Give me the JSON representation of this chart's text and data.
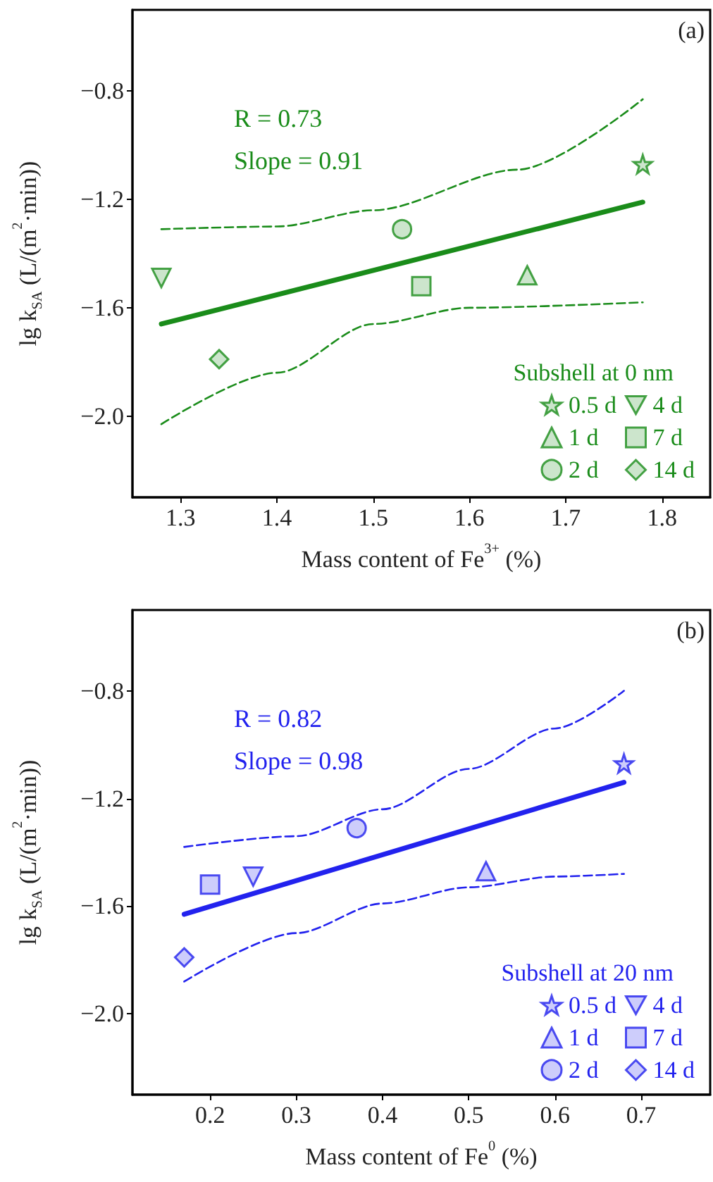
{
  "chart_data": [
    {
      "type": "scatter",
      "xlabel": "Mass content of Fe$^{3+}$ (%)",
      "ylabel": "lg k$_{SA}$ (L/(m$^{2}$·min))",
      "legend_title": "Subshell at 0 nm",
      "annotations": [
        "(a)",
        "R = 0.73",
        "Slope = 0.91"
      ],
      "xlim": [
        1.25,
        1.85
      ],
      "xticks": [
        1.3,
        1.4,
        1.5,
        1.6,
        1.7,
        1.8
      ],
      "ylim": [
        -2.3,
        -0.5
      ],
      "yticks": [
        {
          "value": -0.8,
          "label": "−0.8"
        },
        {
          "value": -1.2,
          "label": "−1.2"
        },
        {
          "value": -1.6,
          "label": "−1.6"
        },
        {
          "value": -2.0,
          "label": "−2.0"
        }
      ],
      "grid": false,
      "legend": "bottom right",
      "series": [
        {
          "name": "0.5 d",
          "marker": "star",
          "color": "#1a8c1a",
          "x": [
            1.78
          ],
          "values": [
            -1.07
          ]
        },
        {
          "name": "1 d",
          "marker": "triangle",
          "color": "#1a8c1a",
          "x": [
            1.66
          ],
          "values": [
            -1.48
          ]
        },
        {
          "name": "2 d",
          "marker": "circle",
          "color": "#1a8c1a",
          "x": [
            1.53
          ],
          "values": [
            -1.31
          ]
        },
        {
          "name": "4 d",
          "marker": "triangle-down",
          "color": "#1a8c1a",
          "x": [
            1.28
          ],
          "values": [
            -1.49
          ]
        },
        {
          "name": "7 d",
          "marker": "square",
          "color": "#1a8c1a",
          "x": [
            1.55
          ],
          "values": [
            -1.52
          ]
        },
        {
          "name": "14 d",
          "marker": "diamond",
          "color": "#1a8c1a",
          "x": [
            1.34
          ],
          "values": [
            -1.79
          ]
        },
        {
          "type": "line",
          "line_style": "solid",
          "color": "#1a8c1a",
          "x": [
            1.28,
            1.78
          ],
          "values": [
            -1.66,
            -1.21
          ]
        },
        {
          "type": "line",
          "line_style": "dashed",
          "color": "#1a8c1a",
          "x": [
            1.28,
            1.4,
            1.5,
            1.65,
            1.78
          ],
          "values": [
            -1.31,
            -1.3,
            -1.24,
            -1.09,
            -0.83
          ]
        },
        {
          "type": "line",
          "line_style": "dashed",
          "color": "#1a8c1a",
          "x": [
            1.28,
            1.4,
            1.5,
            1.6,
            1.78
          ],
          "values": [
            -2.03,
            -1.84,
            -1.66,
            -1.6,
            -1.58
          ]
        }
      ]
    },
    {
      "type": "scatter",
      "xlabel": "Mass content of Fe$^{0}$ (%)",
      "ylabel": "lg k$_{SA}$ (L/(m$^{2}$·min))",
      "legend_title": "Subshell at 20 nm",
      "annotations": [
        "(b)",
        "R = 0.82",
        "Slope = 0.98"
      ],
      "xlim": [
        0.11,
        0.78
      ],
      "xticks": [
        0.2,
        0.3,
        0.4,
        0.5,
        0.6,
        0.7
      ],
      "ylim": [
        -2.3,
        -0.5
      ],
      "yticks": [
        {
          "value": -0.8,
          "label": "−0.8"
        },
        {
          "value": -1.2,
          "label": "−1.2"
        },
        {
          "value": -1.6,
          "label": "−1.6"
        },
        {
          "value": -2.0,
          "label": "−2.0"
        }
      ],
      "grid": false,
      "legend": "bottom right",
      "series": [
        {
          "name": "0.5 d",
          "marker": "star",
          "color": "#2222ee",
          "x": [
            0.68
          ],
          "values": [
            -1.07
          ]
        },
        {
          "name": "1 d",
          "marker": "triangle",
          "color": "#2222ee",
          "x": [
            0.52
          ],
          "values": [
            -1.47
          ]
        },
        {
          "name": "2 d",
          "marker": "circle",
          "color": "#2222ee",
          "x": [
            0.37
          ],
          "values": [
            -1.31
          ]
        },
        {
          "name": "4 d",
          "marker": "triangle-down",
          "color": "#2222ee",
          "x": [
            0.25
          ],
          "values": [
            -1.49
          ]
        },
        {
          "name": "7 d",
          "marker": "square",
          "color": "#2222ee",
          "x": [
            0.2
          ],
          "values": [
            -1.52
          ]
        },
        {
          "name": "14 d",
          "marker": "diamond",
          "color": "#2222ee",
          "x": [
            0.17
          ],
          "values": [
            -1.79
          ]
        },
        {
          "type": "line",
          "line_style": "solid",
          "color": "#2222ee",
          "x": [
            0.17,
            0.68
          ],
          "values": [
            -1.63,
            -1.14
          ]
        },
        {
          "type": "line",
          "line_style": "dashed",
          "color": "#2222ee",
          "x": [
            0.17,
            0.3,
            0.4,
            0.5,
            0.6,
            0.68
          ],
          "values": [
            -1.38,
            -1.34,
            -1.24,
            -1.09,
            -0.94,
            -0.8
          ]
        },
        {
          "type": "line",
          "line_style": "dashed",
          "color": "#2222ee",
          "x": [
            0.17,
            0.3,
            0.4,
            0.5,
            0.6,
            0.68
          ],
          "values": [
            -1.88,
            -1.7,
            -1.59,
            -1.53,
            -1.49,
            -1.48
          ]
        }
      ]
    }
  ]
}
